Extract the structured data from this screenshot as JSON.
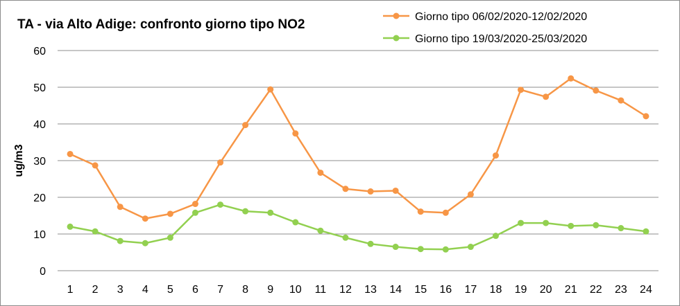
{
  "chart_data": {
    "type": "line",
    "title": "TA - via Alto Adige: confronto giorno tipo NO2",
    "xlabel": "",
    "ylabel": "ug/m3",
    "ylim": [
      0,
      60
    ],
    "yticks": [
      0,
      10,
      20,
      30,
      40,
      50,
      60
    ],
    "grid": true,
    "legend_position": "top-right",
    "categories": [
      "1",
      "2",
      "3",
      "4",
      "5",
      "6",
      "7",
      "8",
      "9",
      "10",
      "11",
      "12",
      "13",
      "14",
      "15",
      "16",
      "17",
      "18",
      "19",
      "20",
      "21",
      "22",
      "23",
      "24"
    ],
    "series": [
      {
        "name": "Giorno tipo 06/02/2020-12/02/2020",
        "color": "#f79646",
        "values": [
          31.8,
          28.7,
          17.4,
          14.2,
          15.5,
          18.2,
          29.5,
          39.7,
          49.4,
          37.4,
          26.7,
          22.3,
          21.6,
          21.8,
          16.1,
          15.8,
          20.8,
          31.4,
          49.3,
          47.4,
          52.4,
          49.1,
          46.4,
          42.1
        ]
      },
      {
        "name": "Giorno tipo 19/03/2020-25/03/2020",
        "color": "#92d050",
        "values": [
          12.0,
          10.7,
          8.1,
          7.5,
          9.0,
          15.8,
          18.0,
          16.2,
          15.8,
          13.2,
          10.9,
          9.0,
          7.3,
          6.5,
          5.9,
          5.8,
          6.5,
          9.5,
          13.0,
          13.0,
          12.2,
          12.4,
          11.6,
          10.7
        ]
      }
    ]
  }
}
